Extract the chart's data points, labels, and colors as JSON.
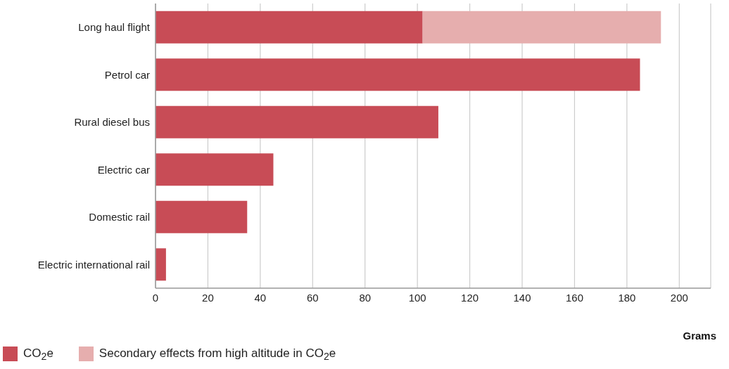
{
  "chart_data": {
    "type": "bar",
    "orientation": "horizontal",
    "stacked": true,
    "categories": [
      "Long haul flight",
      "Petrol car",
      "Rural diesel bus",
      "Electric car",
      "Domestic rail",
      "Electric international rail"
    ],
    "series": [
      {
        "name": "CO$_{2}$e",
        "color": "#c84c56",
        "values": [
          102,
          185,
          108,
          45,
          35,
          4
        ]
      },
      {
        "name": "Secondary effects from high altitude in CO$_{2}$e",
        "color": "#e6aeae",
        "values": [
          91,
          null,
          null,
          null,
          null,
          null
        ]
      }
    ],
    "xlabel": "Grams",
    "xlim": [
      0,
      212
    ],
    "xticks": [
      0,
      20,
      40,
      60,
      80,
      100,
      120,
      140,
      160,
      180,
      200
    ],
    "grid": "x",
    "legend": "bottom left"
  }
}
